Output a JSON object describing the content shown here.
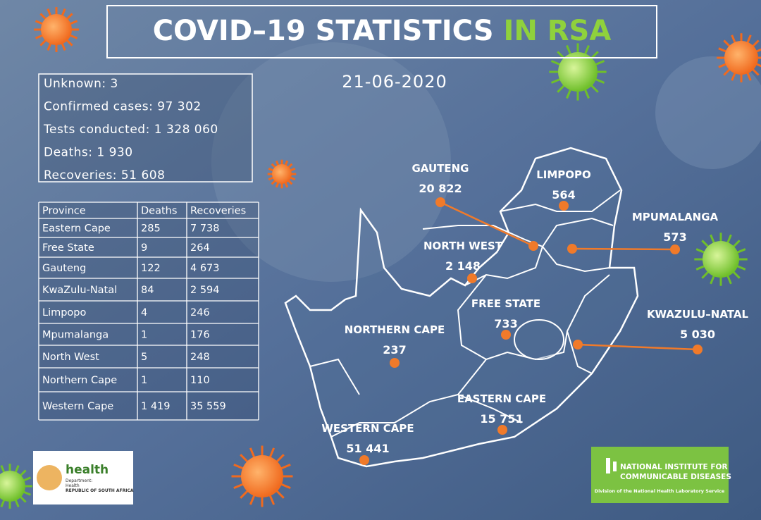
{
  "title": {
    "main": "COVID–19 STATISTICS",
    "highlight": "IN RSA"
  },
  "date": "21-06-2020",
  "summary": [
    "Unknown: 3",
    "Confirmed cases: 97 302",
    "Tests conducted: 1 328 060",
    "Deaths: 1 930",
    "Recoveries: 51 608"
  ],
  "table": {
    "header": [
      "Province",
      "Deaths",
      "Recoveries"
    ],
    "rows": [
      [
        "Eastern Cape",
        "285",
        "7 738"
      ],
      [
        "Free State",
        "9",
        "264"
      ],
      [
        "Gauteng",
        "122",
        "4 673"
      ],
      [
        "KwaZulu-Natal",
        "84",
        "2 594"
      ],
      [
        "Limpopo",
        "4",
        "246"
      ],
      [
        "Mpumalanga",
        "1",
        "176"
      ],
      [
        "North West",
        "5",
        "248"
      ],
      [
        "Northern Cape",
        "1",
        "110"
      ],
      [
        "Western Cape",
        "1 419",
        "35 559"
      ]
    ]
  },
  "map": [
    {
      "name": "GAUTENG",
      "count": "20 822"
    },
    {
      "name": "LIMPOPO",
      "count": "564"
    },
    {
      "name": "MPUMALANGA",
      "count": "573"
    },
    {
      "name": "NORTH WEST",
      "count": "2 148"
    },
    {
      "name": "FREE STATE",
      "count": "733"
    },
    {
      "name": "KWAZULU–NATAL",
      "count": "5 030"
    },
    {
      "name": "NORTHERN CAPE",
      "count": "237"
    },
    {
      "name": "EASTERN CAPE",
      "count": "15 751"
    },
    {
      "name": "WESTERN CAPE",
      "count": "51 441"
    }
  ],
  "logos": {
    "health": {
      "word": "health",
      "line1": "Department:",
      "line2": "Health",
      "line3": "REPUBLIC OF SOUTH AFRICA"
    },
    "nicd": {
      "line1": "NATIONAL INSTITUTE FOR",
      "line2": "COMMUNICABLE DISEASES",
      "line3": "Division of the National Health Laboratory Service"
    }
  }
}
